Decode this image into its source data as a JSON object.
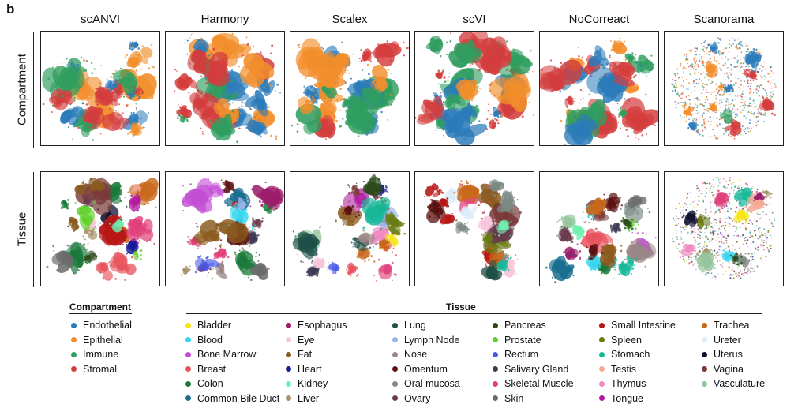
{
  "panel_letter": "b",
  "methods": [
    "scANVI",
    "Harmony",
    "Scalex",
    "scVI",
    "NoCorreact",
    "Scanorama"
  ],
  "rows": [
    "Compartment",
    "Tissue"
  ],
  "compartment_legend": {
    "title": "Compartment",
    "items": [
      {
        "label": "Endothelial",
        "color": "#2b7bba"
      },
      {
        "label": "Epithelial",
        "color": "#f28e2b"
      },
      {
        "label": "Immune",
        "color": "#2f9e5f"
      },
      {
        "label": "Stromal",
        "color": "#d43d3d"
      }
    ]
  },
  "tissue_legend": {
    "title": "Tissue",
    "items": [
      {
        "label": "Bladder",
        "color": "#f5e614"
      },
      {
        "label": "Blood",
        "color": "#36d6f0"
      },
      {
        "label": "Bone Marrow",
        "color": "#c24dd4"
      },
      {
        "label": "Breast",
        "color": "#e8505b"
      },
      {
        "label": "Colon",
        "color": "#1a7a3a"
      },
      {
        "label": "Common Bile Duct",
        "color": "#1b6e8f"
      },
      {
        "label": "Esophagus",
        "color": "#9c1d6b"
      },
      {
        "label": "Eye",
        "color": "#f7c6d9"
      },
      {
        "label": "Fat",
        "color": "#8a5a1e"
      },
      {
        "label": "Heart",
        "color": "#1a1a9c"
      },
      {
        "label": "Kidney",
        "color": "#6ff0b0"
      },
      {
        "label": "Liver",
        "color": "#a8946a"
      },
      {
        "label": "Lung",
        "color": "#1e5048"
      },
      {
        "label": "Lymph Node",
        "color": "#9ab4e8"
      },
      {
        "label": "Nose",
        "color": "#9a8686"
      },
      {
        "label": "Omentum",
        "color": "#5a1010"
      },
      {
        "label": "Oral mucosa",
        "color": "#7c8a84"
      },
      {
        "label": "Ovary",
        "color": "#6a3a4e"
      },
      {
        "label": "Pancreas",
        "color": "#2a4a1a"
      },
      {
        "label": "Prostate",
        "color": "#5fd02a"
      },
      {
        "label": "Rectum",
        "color": "#4a5ae8"
      },
      {
        "label": "Salivary Gland",
        "color": "#3e3a54"
      },
      {
        "label": "Skeletal Muscle",
        "color": "#e0407a"
      },
      {
        "label": "Skin",
        "color": "#6a6a6a"
      },
      {
        "label": "Small Intestine",
        "color": "#b81616"
      },
      {
        "label": "Spleen",
        "color": "#6a7a14"
      },
      {
        "label": "Stomach",
        "color": "#16b89a"
      },
      {
        "label": "Testis",
        "color": "#f5a894"
      },
      {
        "label": "Thymus",
        "color": "#f08ac4"
      },
      {
        "label": "Tongue",
        "color": "#b01aa0"
      },
      {
        "label": "Trachea",
        "color": "#c8681a"
      },
      {
        "label": "Ureter",
        "color": "#dcecf8"
      },
      {
        "label": "Uterus",
        "color": "#0e0e30"
      },
      {
        "label": "Vagina",
        "color": "#7a3a3a"
      },
      {
        "label": "Vasculature",
        "color": "#94c49a"
      }
    ]
  }
}
